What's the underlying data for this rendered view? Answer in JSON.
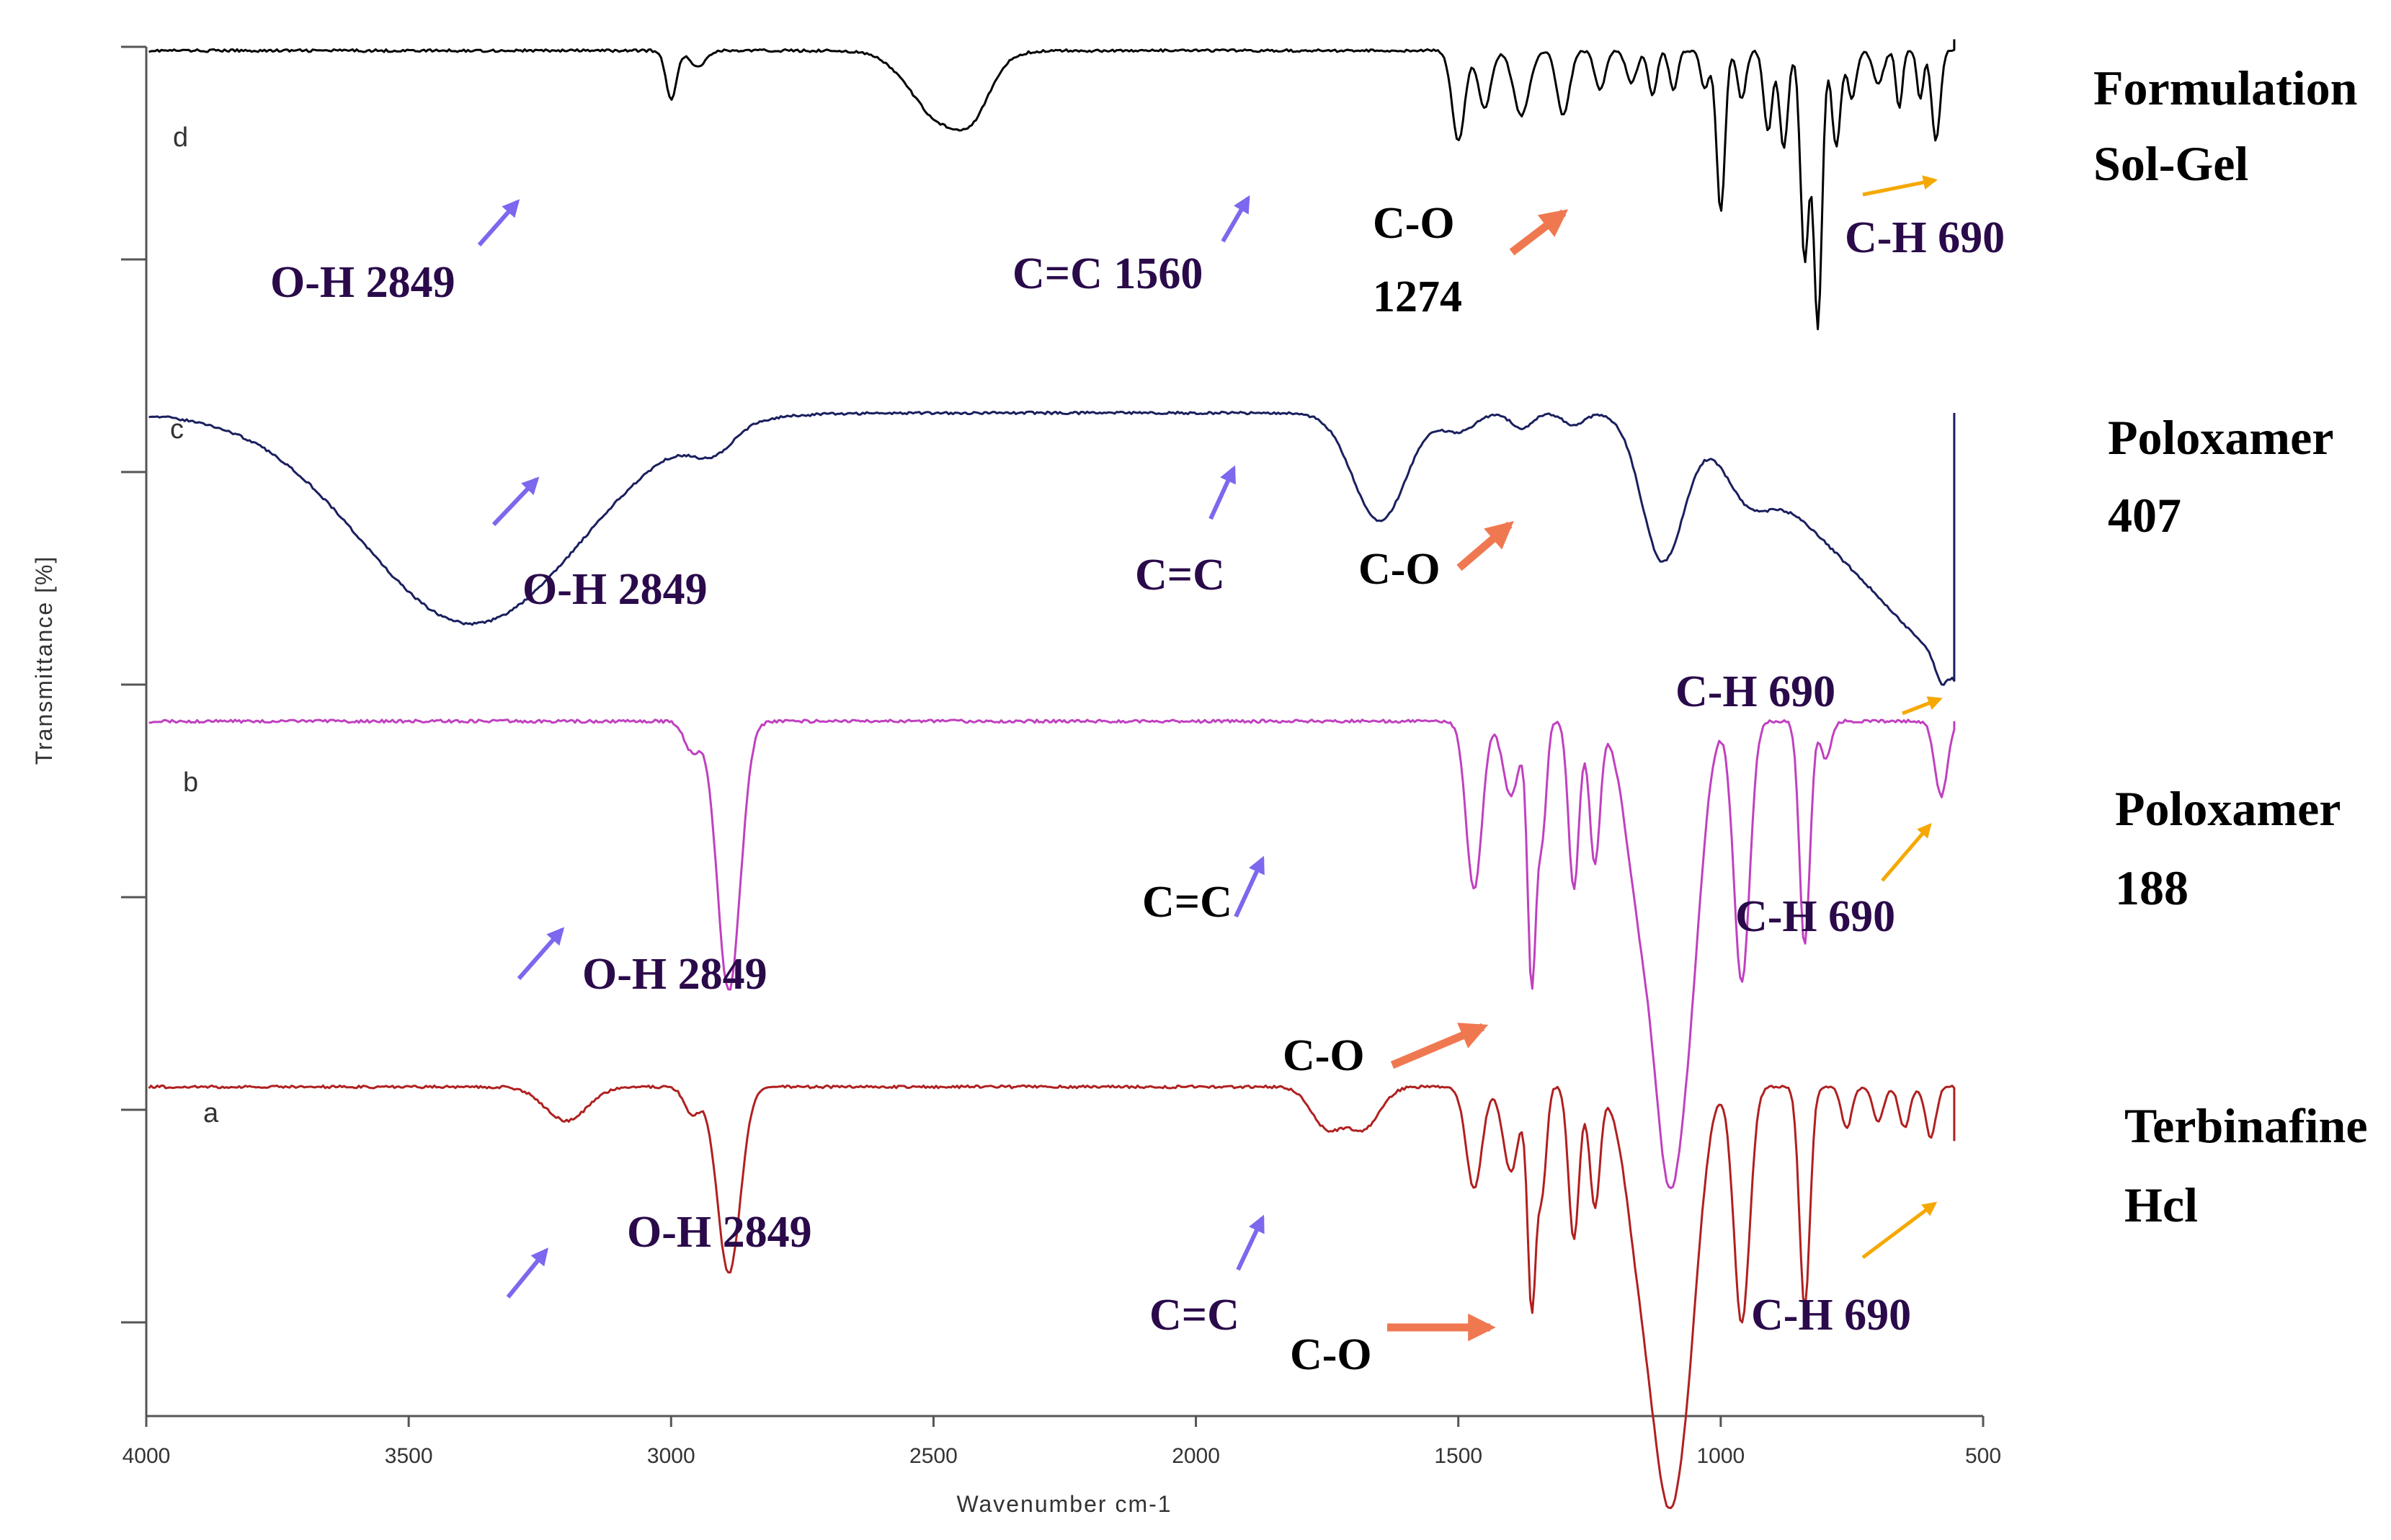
{
  "chart_data": {
    "type": "line",
    "title": "",
    "xlabel": "Wavenumber cm-1",
    "ylabel": "Transmittance [%]",
    "xlim": [
      4000,
      500
    ],
    "x_ticks": [
      "4000",
      "3500",
      "3000",
      "2500",
      "2000",
      "1500",
      "1000",
      "500"
    ],
    "series": [
      {
        "id": "d",
        "letter": "d",
        "name_line1": "Formulation",
        "name_line2": "Sol-Gel",
        "color": "#000000",
        "baseline": 0.955,
        "noise": 0.004,
        "edge": [
          555,
          0.99
        ],
        "bands": [
          [
            3000,
            0.15,
            10
          ],
          [
            2950,
            0.05,
            15
          ],
          [
            2480,
            0.22,
            60
          ],
          [
            2420,
            0.08,
            30
          ],
          [
            1500,
            0.28,
            12
          ],
          [
            1450,
            0.18,
            12
          ],
          [
            1380,
            0.2,
            15
          ],
          [
            1300,
            0.2,
            12
          ],
          [
            1230,
            0.12,
            10
          ],
          [
            1170,
            0.1,
            10
          ],
          [
            1130,
            0.14,
            8
          ],
          [
            1090,
            0.12,
            8
          ],
          [
            1030,
            0.12,
            8
          ],
          [
            1000,
            0.5,
            8
          ],
          [
            960,
            0.15,
            8
          ],
          [
            910,
            0.25,
            8
          ],
          [
            880,
            0.3,
            8
          ],
          [
            840,
            0.65,
            8
          ],
          [
            815,
            0.85,
            8
          ],
          [
            780,
            0.3,
            8
          ],
          [
            750,
            0.15,
            8
          ],
          [
            700,
            0.1,
            10
          ],
          [
            660,
            0.18,
            6
          ],
          [
            620,
            0.15,
            6
          ],
          [
            590,
            0.28,
            8
          ]
        ]
      },
      {
        "id": "c",
        "letter": "c",
        "name_line1": "Poloxamer",
        "name_line2": "407",
        "color": "#1a1f5e",
        "baseline": 0.9,
        "noise": 0.004,
        "slope_from": 1100,
        "slope_depth": 0.85,
        "edge": [
          555,
          0.9
        ],
        "bands": [
          [
            3380,
            0.68,
            210
          ],
          [
            2920,
            0.08,
            40
          ],
          [
            1650,
            0.35,
            50
          ],
          [
            1500,
            0.06,
            30
          ],
          [
            1380,
            0.05,
            20
          ],
          [
            1280,
            0.04,
            20
          ],
          [
            1110,
            0.48,
            40
          ],
          [
            950,
            0.12,
            40
          ],
          [
            580,
            0.06,
            10
          ]
        ]
      },
      {
        "id": "b",
        "letter": "b",
        "name_line1": "Poloxamer",
        "name_line2": "188",
        "color": "#c040c0",
        "baseline": 0.96,
        "noise": 0.004,
        "edge": [
          555,
          0.96
        ],
        "bands": [
          [
            2890,
            0.72,
            22
          ],
          [
            2960,
            0.08,
            15
          ],
          [
            1470,
            0.45,
            15
          ],
          [
            1400,
            0.2,
            15
          ],
          [
            1360,
            0.7,
            8
          ],
          [
            1340,
            0.3,
            8
          ],
          [
            1280,
            0.45,
            10
          ],
          [
            1240,
            0.38,
            10
          ],
          [
            1150,
            0.5,
            30
          ],
          [
            1100,
            0.95,
            25
          ],
          [
            1060,
            0.6,
            25
          ],
          [
            960,
            0.7,
            15
          ],
          [
            840,
            0.6,
            10
          ],
          [
            800,
            0.1,
            10
          ],
          [
            580,
            0.2,
            12
          ]
        ]
      },
      {
        "id": "a",
        "letter": "a",
        "name_line1": "Terbinafine",
        "name_line2": "Hcl",
        "color": "#b02020",
        "baseline": 0.94,
        "noise": 0.004,
        "edge": [
          555,
          0.78
        ],
        "bands": [
          [
            3200,
            0.1,
            40
          ],
          [
            2890,
            0.55,
            22
          ],
          [
            2960,
            0.08,
            15
          ],
          [
            1750,
            0.12,
            30
          ],
          [
            1680,
            0.12,
            30
          ],
          [
            1470,
            0.3,
            15
          ],
          [
            1400,
            0.25,
            15
          ],
          [
            1360,
            0.65,
            8
          ],
          [
            1340,
            0.3,
            8
          ],
          [
            1280,
            0.45,
            10
          ],
          [
            1240,
            0.35,
            10
          ],
          [
            1150,
            0.5,
            30
          ],
          [
            1100,
            0.98,
            28
          ],
          [
            1060,
            0.5,
            25
          ],
          [
            960,
            0.7,
            15
          ],
          [
            840,
            0.65,
            10
          ],
          [
            760,
            0.12,
            10
          ],
          [
            700,
            0.1,
            10
          ],
          [
            650,
            0.12,
            10
          ],
          [
            600,
            0.15,
            10
          ]
        ]
      }
    ],
    "annotations": [
      {
        "id": "d-oh",
        "text": "O-H 2849",
        "color": "#2a0a4a",
        "arrow": "purple"
      },
      {
        "id": "d-cc",
        "text": "C=C 1560",
        "color": "#2a0a4a",
        "arrow": "purple"
      },
      {
        "id": "d-co",
        "text": "C-O",
        "color": "#000000",
        "arrow": "orange"
      },
      {
        "id": "d-co-num",
        "text": "1274",
        "color": "#000000"
      },
      {
        "id": "d-ch",
        "text": "C-H 690",
        "color": "#2a0a4a",
        "arrow": "gold"
      },
      {
        "id": "c-oh",
        "text": "O-H 2849",
        "color": "#2a0a4a",
        "arrow": "purple"
      },
      {
        "id": "c-cc",
        "text": "C=C",
        "color": "#2a0a4a",
        "arrow": "purple"
      },
      {
        "id": "c-co",
        "text": "C-O",
        "color": "#000000",
        "arrow": "orange"
      },
      {
        "id": "c-ch",
        "text": "C-H 690",
        "color": "#2a0a4a",
        "arrow": "gold"
      },
      {
        "id": "b-oh",
        "text": "O-H 2849",
        "color": "#2a0a4a",
        "arrow": "purple"
      },
      {
        "id": "b-cc",
        "text": "C=C",
        "color": "#000000",
        "arrow": "purple"
      },
      {
        "id": "b-co",
        "text": "C-O",
        "color": "#000000",
        "arrow": "orange"
      },
      {
        "id": "b-ch",
        "text": "C-H 690",
        "color": "#2a0a4a",
        "arrow": "gold"
      },
      {
        "id": "a-oh",
        "text": "O-H 2849",
        "color": "#2a0a4a",
        "arrow": "purple"
      },
      {
        "id": "a-cc",
        "text": "C=C",
        "color": "#2a0a4a",
        "arrow": "purple"
      },
      {
        "id": "a-co",
        "text": "C-O",
        "color": "#000000",
        "arrow": "orange"
      },
      {
        "id": "a-ch",
        "text": "C-H 690",
        "color": "#2a0a4a",
        "arrow": "gold"
      }
    ],
    "arrow_colors": {
      "purple": "#7b68ee",
      "orange": "#f07850",
      "gold": "#f5a800"
    }
  }
}
